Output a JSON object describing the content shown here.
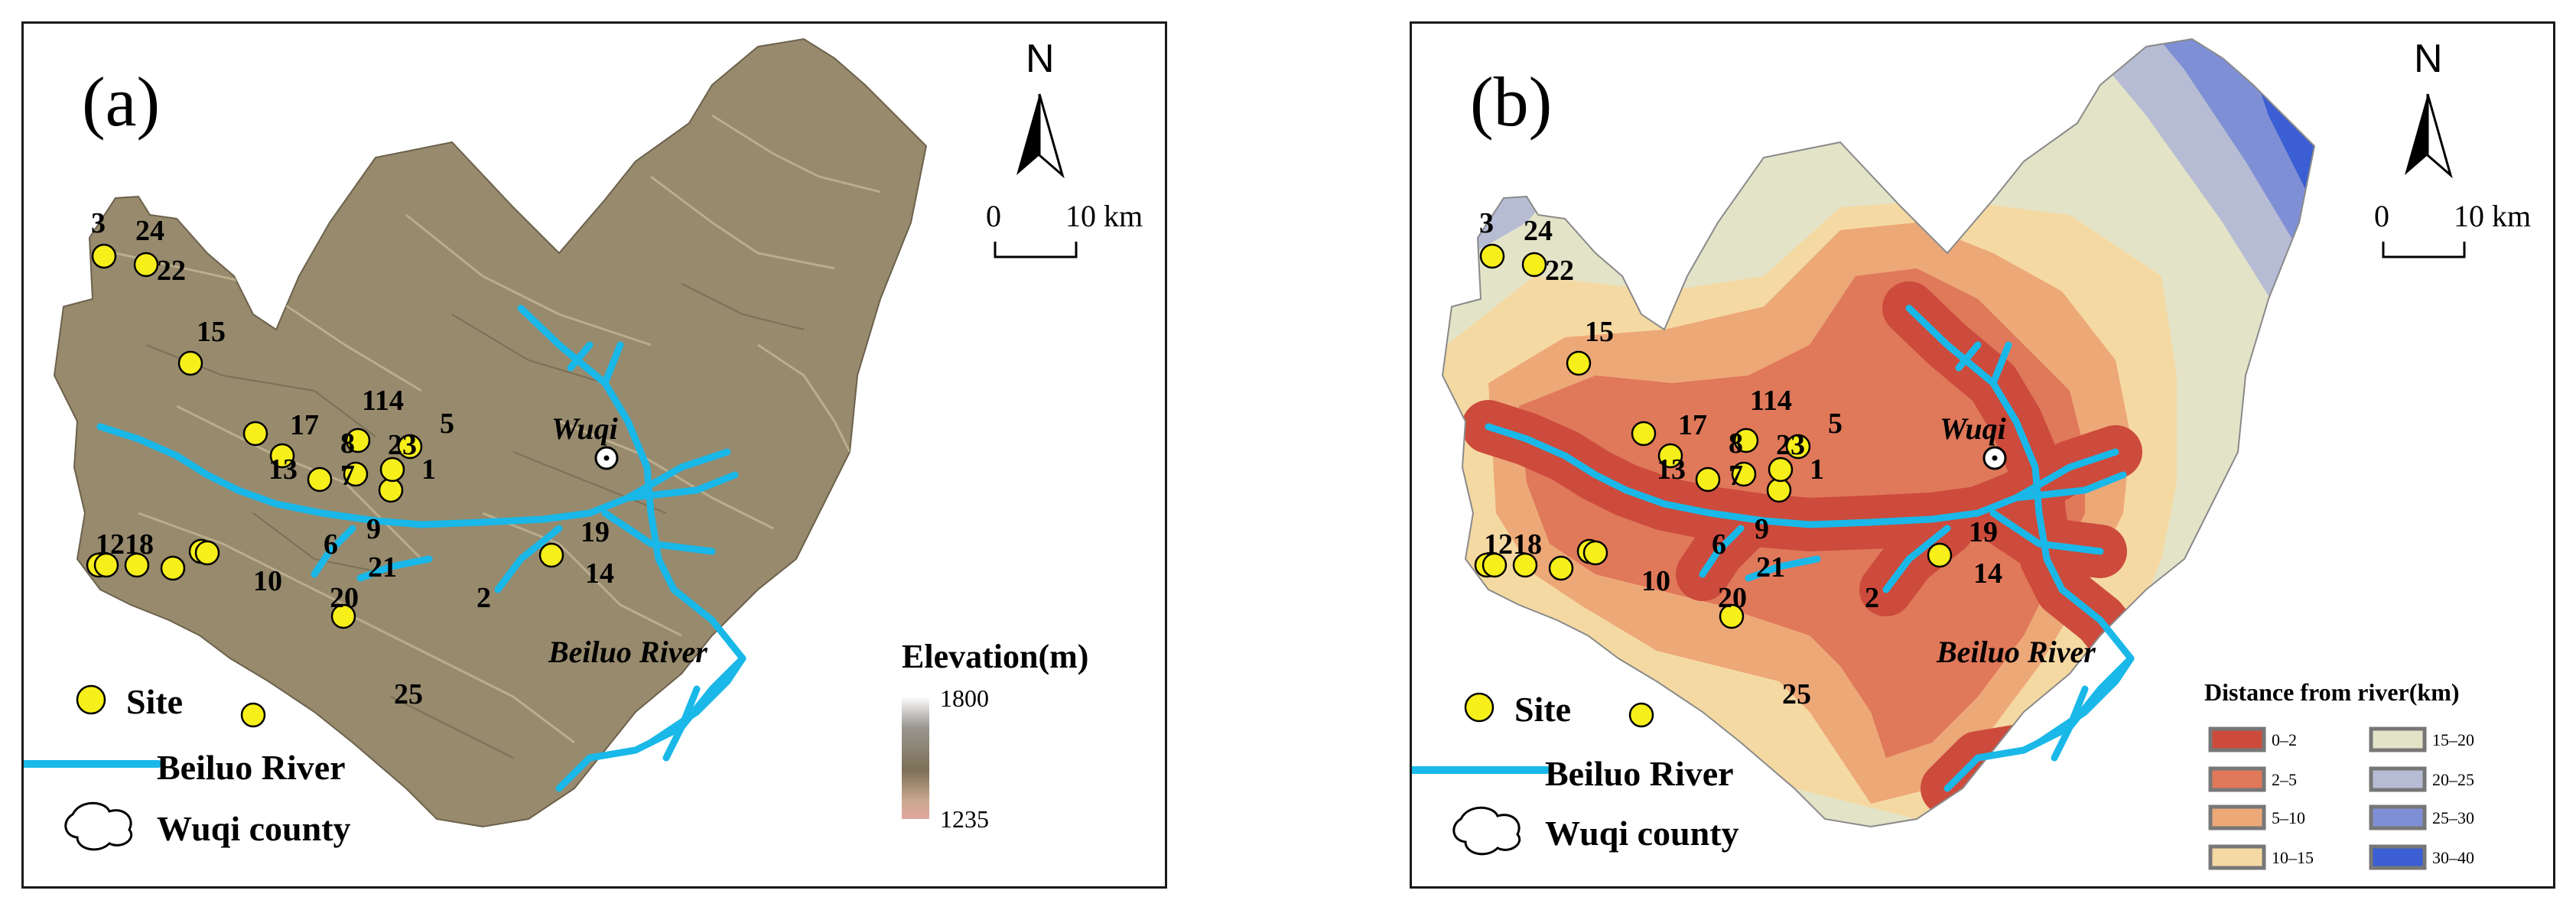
{
  "panels": {
    "a": {
      "label": "(a)"
    },
    "b": {
      "label": "(b)"
    }
  },
  "north_arrow": {
    "letter": "N"
  },
  "scale_bar": {
    "start": "0",
    "end": "10 km"
  },
  "places": {
    "county_seat": "Wuqi",
    "river_label": "Beiluo River"
  },
  "sites": [
    "3",
    "24",
    "22",
    "15",
    "114",
    "5",
    "17",
    "8",
    "23",
    "13",
    "7",
    "1",
    "9",
    "19",
    "1218",
    "6",
    "10",
    "21",
    "20",
    "14",
    "2",
    "25"
  ],
  "legend": {
    "site": "Site",
    "river": "Beiluo River",
    "county": "Wuqi county"
  },
  "elevation_legend": {
    "title": "Elevation(m)",
    "max": "1800",
    "min": "1235"
  },
  "distance_legend": {
    "title": "Distance from river(km)",
    "bins": [
      {
        "label": "0–2",
        "color": "#cc4b3c"
      },
      {
        "label": "2–5",
        "color": "#e0785a"
      },
      {
        "label": "5–10",
        "color": "#eda878"
      },
      {
        "label": "10–15",
        "color": "#f5d9a3"
      },
      {
        "label": "15–20",
        "color": "#e3e3c8"
      },
      {
        "label": "20–25",
        "color": "#b6bcd4"
      },
      {
        "label": "25–30",
        "color": "#7f8fd6"
      },
      {
        "label": "30–40",
        "color": "#3b5ed4"
      }
    ]
  },
  "colors": {
    "river": "#19b8e8",
    "site_fill": "#f7ef1a",
    "terrain": "#978a6d"
  }
}
